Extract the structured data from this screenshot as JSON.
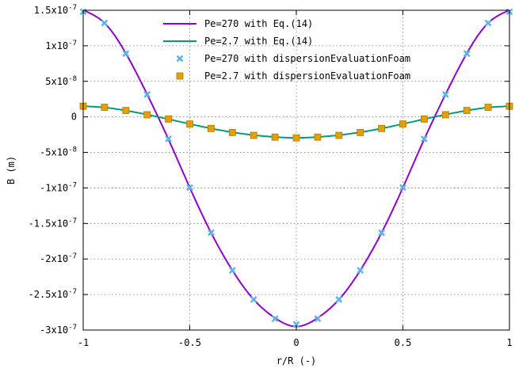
{
  "chart_data": {
    "type": "line",
    "xlabel": "r/R (-)",
    "ylabel": "B (m)",
    "xlim": [
      -1,
      1
    ],
    "ylim": [
      -3e-07,
      1.5e-07
    ],
    "x_ticks": [
      {
        "value": -1,
        "label": "-1"
      },
      {
        "value": -0.5,
        "label": "-0.5"
      },
      {
        "value": 0,
        "label": "0"
      },
      {
        "value": 0.5,
        "label": "0.5"
      },
      {
        "value": 1,
        "label": "1"
      }
    ],
    "y_ticks": [
      {
        "value": 1.5e-07,
        "base": "1.5x10",
        "exp": "-7"
      },
      {
        "value": 1e-07,
        "base": "1x10",
        "exp": "-7"
      },
      {
        "value": 5e-08,
        "base": "5x10",
        "exp": "-8"
      },
      {
        "value": 0,
        "base": "0",
        "exp": ""
      },
      {
        "value": -5e-08,
        "base": "-5x10",
        "exp": "-8"
      },
      {
        "value": -1e-07,
        "base": "-1x10",
        "exp": "-7"
      },
      {
        "value": -1.5e-07,
        "base": "-1.5x10",
        "exp": "-7"
      },
      {
        "value": -2e-07,
        "base": "-2x10",
        "exp": "-7"
      },
      {
        "value": -2.5e-07,
        "base": "-2.5x10",
        "exp": "-7"
      },
      {
        "value": -3e-07,
        "base": "-3x10",
        "exp": "-7"
      }
    ],
    "grid": true,
    "legend_position": "top-center",
    "series": [
      {
        "name": "Pe=270 with Eq.(14)",
        "kind": "line",
        "color": "#9400d3",
        "x": [
          -1,
          -0.9,
          -0.8,
          -0.7,
          -0.6,
          -0.5,
          -0.4,
          -0.3,
          -0.2,
          -0.1,
          0,
          0.1,
          0.2,
          0.3,
          0.4,
          0.5,
          0.6,
          0.7,
          0.8,
          0.9,
          1
        ],
        "y": [
          1.5e-07,
          1.32e-07,
          8.95e-08,
          3.17e-08,
          -3.15e-08,
          -9.95e-08,
          -1.63e-07,
          -2.16e-07,
          -2.57e-07,
          -2.83e-07,
          -2.95e-07,
          -2.83e-07,
          -2.57e-07,
          -2.16e-07,
          -1.63e-07,
          -9.95e-08,
          -3.15e-08,
          3.17e-08,
          8.95e-08,
          1.32e-07,
          1.5e-07
        ]
      },
      {
        "name": "Pe=2.7 with Eq.(14)",
        "kind": "line",
        "color": "#009e73",
        "x": [
          -1,
          -0.9,
          -0.8,
          -0.7,
          -0.6,
          -0.5,
          -0.4,
          -0.3,
          -0.2,
          -0.1,
          0,
          0.1,
          0.2,
          0.3,
          0.4,
          0.5,
          0.6,
          0.7,
          0.8,
          0.9,
          1
        ],
        "y": [
          1.5e-08,
          1.32e-08,
          8.9e-09,
          3.2e-09,
          -3.2e-09,
          -9.9e-09,
          -1.63e-08,
          -2.16e-08,
          -2.57e-08,
          -2.83e-08,
          -2.95e-08,
          -2.83e-08,
          -2.57e-08,
          -2.16e-08,
          -1.63e-08,
          -9.9e-09,
          -3.2e-09,
          3.2e-09,
          8.9e-09,
          1.32e-08,
          1.5e-08
        ]
      },
      {
        "name": "Pe=270 with dispersionEvaluationFoam",
        "kind": "marker-x",
        "color": "#56b4e9",
        "x": [
          -1,
          -0.9,
          -0.8,
          -0.7,
          -0.6,
          -0.5,
          -0.4,
          -0.3,
          -0.2,
          -0.1,
          0,
          0.1,
          0.2,
          0.3,
          0.4,
          0.5,
          0.6,
          0.7,
          0.8,
          0.9,
          1
        ],
        "y": [
          1.48e-07,
          1.32e-07,
          8.9e-08,
          3.15e-08,
          -3.1e-08,
          -9.95e-08,
          -1.63e-07,
          -2.16e-07,
          -2.57e-07,
          -2.84e-07,
          -2.92e-07,
          -2.84e-07,
          -2.57e-07,
          -2.16e-07,
          -1.63e-07,
          -9.95e-08,
          -3.1e-08,
          3.15e-08,
          8.9e-08,
          1.32e-07,
          1.48e-07
        ]
      },
      {
        "name": "Pe=2.7 with dispersionEvaluationFoam",
        "kind": "marker-square",
        "color": "#e69f00",
        "x": [
          -1,
          -0.9,
          -0.8,
          -0.7,
          -0.6,
          -0.5,
          -0.4,
          -0.3,
          -0.2,
          -0.1,
          0,
          0.1,
          0.2,
          0.3,
          0.4,
          0.5,
          0.6,
          0.7,
          0.8,
          0.9,
          1
        ],
        "y": [
          1.5e-08,
          1.35e-08,
          9e-09,
          3e-09,
          -3e-09,
          -1e-08,
          -1.63e-08,
          -2.2e-08,
          -2.6e-08,
          -2.85e-08,
          -2.95e-08,
          -2.85e-08,
          -2.6e-08,
          -2.2e-08,
          -1.63e-08,
          -1e-08,
          -3e-09,
          3e-09,
          9e-09,
          1.35e-08,
          1.5e-08
        ]
      }
    ]
  }
}
